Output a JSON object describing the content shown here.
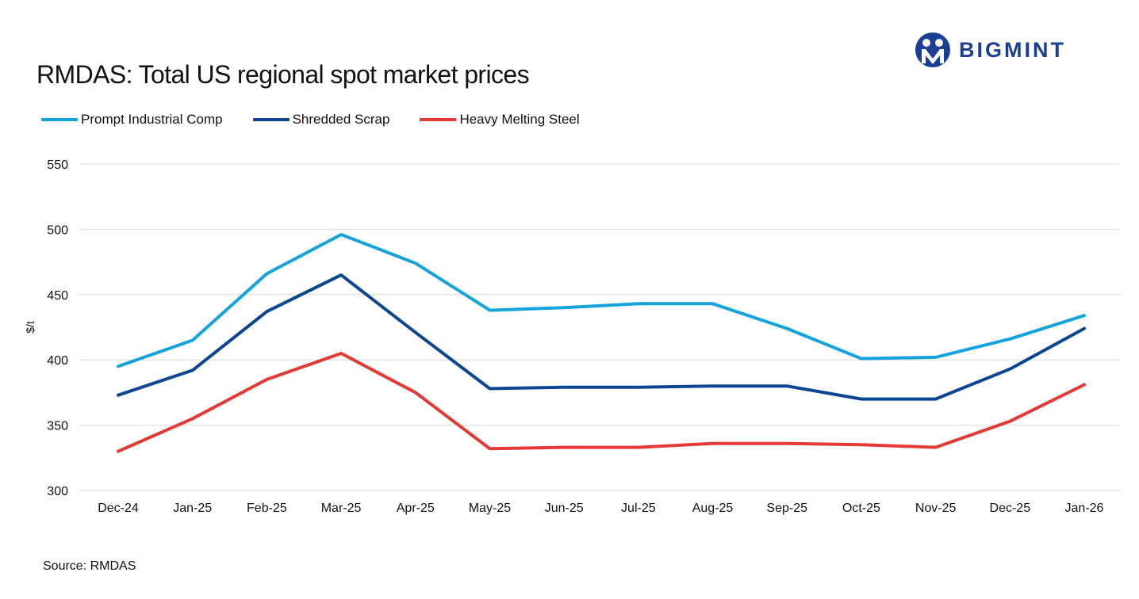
{
  "header": {
    "title": "RMDAS: Total US regional spot market prices"
  },
  "brand": {
    "name": "BIGMINT",
    "color": "#1a3f95"
  },
  "footer": {
    "source": "Source: RMDAS"
  },
  "chart_data": {
    "type": "line",
    "title": "RMDAS: Total US regional spot market prices",
    "xlabel": "",
    "ylabel": "$/t",
    "ylim": [
      300,
      550
    ],
    "yticks": [
      300,
      350,
      400,
      450,
      500,
      550
    ],
    "grid": true,
    "legend_position": "top-left",
    "categories": [
      "Dec-24",
      "Jan-25",
      "Feb-25",
      "Mar-25",
      "Apr-25",
      "May-25",
      "Jun-25",
      "Jul-25",
      "Aug-25",
      "Sep-25",
      "Oct-25",
      "Nov-25",
      "Dec-25",
      "Jan-26"
    ],
    "series": [
      {
        "name": "Prompt Industrial Comp",
        "color": "#14a3dd",
        "values": [
          395,
          415,
          466,
          496,
          474,
          438,
          440,
          443,
          443,
          424,
          401,
          402,
          416,
          434
        ]
      },
      {
        "name": "Shredded Scrap",
        "color": "#0b4593",
        "values": [
          373,
          392,
          437,
          465,
          421,
          378,
          379,
          379,
          380,
          380,
          370,
          370,
          393,
          424
        ]
      },
      {
        "name": "Heavy Melting Steel",
        "color": "#e53935",
        "values": [
          330,
          355,
          385,
          405,
          375,
          332,
          333,
          333,
          336,
          336,
          335,
          333,
          353,
          381
        ]
      }
    ]
  }
}
